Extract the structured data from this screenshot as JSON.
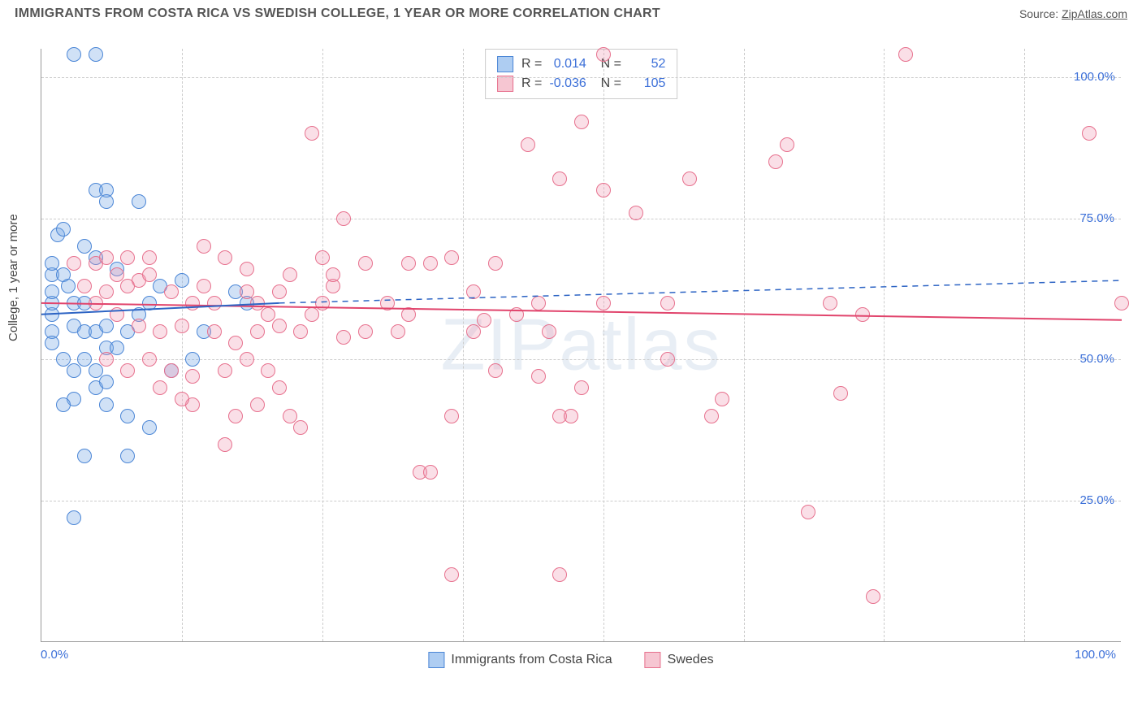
{
  "header": {
    "title": "IMMIGRANTS FROM COSTA RICA VS SWEDISH COLLEGE, 1 YEAR OR MORE CORRELATION CHART",
    "source_prefix": "Source: ",
    "source_link": "ZipAtlas.com"
  },
  "watermark": "ZIPatlas",
  "chart": {
    "type": "scatter",
    "ylabel": "College, 1 year or more",
    "xlim": [
      0,
      100
    ],
    "ylim": [
      0,
      105
    ],
    "xtick_labels": {
      "start": "0.0%",
      "end": "100.0%"
    },
    "ytick_positions": [
      25,
      50,
      75,
      100
    ],
    "ytick_labels": [
      "25.0%",
      "50.0%",
      "75.0%",
      "100.0%"
    ],
    "xgrid_positions": [
      13,
      26,
      39,
      52,
      65,
      78,
      91
    ],
    "background_color": "#ffffff",
    "grid_color": "#cccccc",
    "axis_color": "#999999",
    "tick_color": "#3b6fd8",
    "label_fontsize": 15,
    "marker_radius": 9,
    "series": [
      {
        "name": "Immigrants from Costa Rica",
        "color_fill": "rgba(120,170,230,0.35)",
        "color_stroke": "#4b86d6",
        "swatch_fill": "#aecdf2",
        "R": "0.014",
        "N": "52",
        "trend": {
          "y_start": 58,
          "y_end_solid": 60,
          "x_solid_end": 22,
          "y_end_dash": 64,
          "stroke": "#2d64c4",
          "width": 2
        },
        "points": [
          [
            1,
            58
          ],
          [
            1,
            60
          ],
          [
            1,
            62
          ],
          [
            1,
            55
          ],
          [
            1,
            53
          ],
          [
            1,
            65
          ],
          [
            1,
            67
          ],
          [
            1.5,
            72
          ],
          [
            2,
            73
          ],
          [
            3,
            104
          ],
          [
            5,
            104
          ],
          [
            5,
            80
          ],
          [
            6,
            80
          ],
          [
            6,
            78
          ],
          [
            9,
            78
          ],
          [
            4,
            70
          ],
          [
            5,
            68
          ],
          [
            2,
            65
          ],
          [
            2.5,
            63
          ],
          [
            3,
            60
          ],
          [
            4,
            60
          ],
          [
            3,
            56
          ],
          [
            4,
            55
          ],
          [
            5,
            55
          ],
          [
            6,
            56
          ],
          [
            2,
            50
          ],
          [
            4,
            50
          ],
          [
            3,
            48
          ],
          [
            5,
            48
          ],
          [
            6,
            52
          ],
          [
            7,
            52
          ],
          [
            8,
            55
          ],
          [
            9,
            58
          ],
          [
            3,
            43
          ],
          [
            5,
            45
          ],
          [
            6,
            42
          ],
          [
            8,
            40
          ],
          [
            10,
            38
          ],
          [
            4,
            33
          ],
          [
            8,
            33
          ],
          [
            3,
            22
          ],
          [
            18,
            62
          ],
          [
            19,
            60
          ],
          [
            11,
            63
          ],
          [
            13,
            64
          ],
          [
            15,
            55
          ],
          [
            10,
            60
          ],
          [
            7,
            66
          ],
          [
            12,
            48
          ],
          [
            14,
            50
          ],
          [
            2,
            42
          ],
          [
            6,
            46
          ]
        ]
      },
      {
        "name": "Swedes",
        "color_fill": "rgba(240,150,175,0.30)",
        "color_stroke": "#e7718e",
        "swatch_fill": "#f6c6d2",
        "R": "-0.036",
        "N": "105",
        "trend": {
          "y_start": 60,
          "y_end": 57,
          "stroke": "#e1446c",
          "width": 2
        },
        "points": [
          [
            3,
            67
          ],
          [
            5,
            67
          ],
          [
            6,
            68
          ],
          [
            8,
            68
          ],
          [
            10,
            68
          ],
          [
            7,
            65
          ],
          [
            9,
            64
          ],
          [
            4,
            63
          ],
          [
            6,
            62
          ],
          [
            8,
            63
          ],
          [
            10,
            65
          ],
          [
            12,
            62
          ],
          [
            14,
            60
          ],
          [
            15,
            63
          ],
          [
            5,
            60
          ],
          [
            7,
            58
          ],
          [
            9,
            56
          ],
          [
            11,
            55
          ],
          [
            13,
            56
          ],
          [
            16,
            55
          ],
          [
            18,
            53
          ],
          [
            6,
            50
          ],
          [
            8,
            48
          ],
          [
            10,
            50
          ],
          [
            12,
            48
          ],
          [
            14,
            47
          ],
          [
            17,
            48
          ],
          [
            19,
            50
          ],
          [
            15,
            70
          ],
          [
            17,
            68
          ],
          [
            19,
            66
          ],
          [
            20,
            60
          ],
          [
            21,
            58
          ],
          [
            22,
            62
          ],
          [
            23,
            65
          ],
          [
            20,
            55
          ],
          [
            22,
            56
          ],
          [
            24,
            55
          ],
          [
            25,
            58
          ],
          [
            26,
            60
          ],
          [
            27,
            63
          ],
          [
            28,
            54
          ],
          [
            20,
            42
          ],
          [
            22,
            45
          ],
          [
            14,
            42
          ],
          [
            18,
            40
          ],
          [
            24,
            38
          ],
          [
            25,
            90
          ],
          [
            27,
            65
          ],
          [
            30,
            67
          ],
          [
            32,
            60
          ],
          [
            33,
            55
          ],
          [
            34,
            58
          ],
          [
            35,
            30
          ],
          [
            36,
            67
          ],
          [
            38,
            68
          ],
          [
            38,
            40
          ],
          [
            40,
            62
          ],
          [
            41,
            57
          ],
          [
            42,
            48
          ],
          [
            42,
            67
          ],
          [
            36,
            30
          ],
          [
            38,
            12
          ],
          [
            45,
            88
          ],
          [
            47,
            55
          ],
          [
            48,
            82
          ],
          [
            48,
            40
          ],
          [
            49,
            40
          ],
          [
            50,
            92
          ],
          [
            52,
            80
          ],
          [
            52,
            60
          ],
          [
            52,
            104
          ],
          [
            46,
            47
          ],
          [
            50,
            45
          ],
          [
            55,
            76
          ],
          [
            58,
            50
          ],
          [
            58,
            60
          ],
          [
            60,
            82
          ],
          [
            62,
            40
          ],
          [
            63,
            43
          ],
          [
            69,
            88
          ],
          [
            76,
            58
          ],
          [
            80,
            104
          ],
          [
            68,
            85
          ],
          [
            73,
            60
          ],
          [
            48,
            12
          ],
          [
            71,
            23
          ],
          [
            77,
            8
          ],
          [
            97,
            90
          ],
          [
            100,
            60
          ],
          [
            74,
            44
          ],
          [
            34,
            67
          ],
          [
            30,
            55
          ],
          [
            28,
            75
          ],
          [
            26,
            68
          ],
          [
            44,
            58
          ],
          [
            46,
            60
          ],
          [
            40,
            55
          ],
          [
            16,
            60
          ],
          [
            19,
            62
          ],
          [
            21,
            48
          ],
          [
            23,
            40
          ],
          [
            11,
            45
          ],
          [
            13,
            43
          ],
          [
            17,
            35
          ]
        ]
      }
    ],
    "legend_top": {
      "rows": [
        {
          "swatch": "blue",
          "R_label": "R =",
          "R": "0.014",
          "N_label": "N =",
          "N": "52"
        },
        {
          "swatch": "pink",
          "R_label": "R =",
          "R": "-0.036",
          "N_label": "N =",
          "N": "105"
        }
      ]
    },
    "legend_bottom": [
      {
        "swatch": "blue",
        "label": "Immigrants from Costa Rica"
      },
      {
        "swatch": "pink",
        "label": "Swedes"
      }
    ]
  }
}
